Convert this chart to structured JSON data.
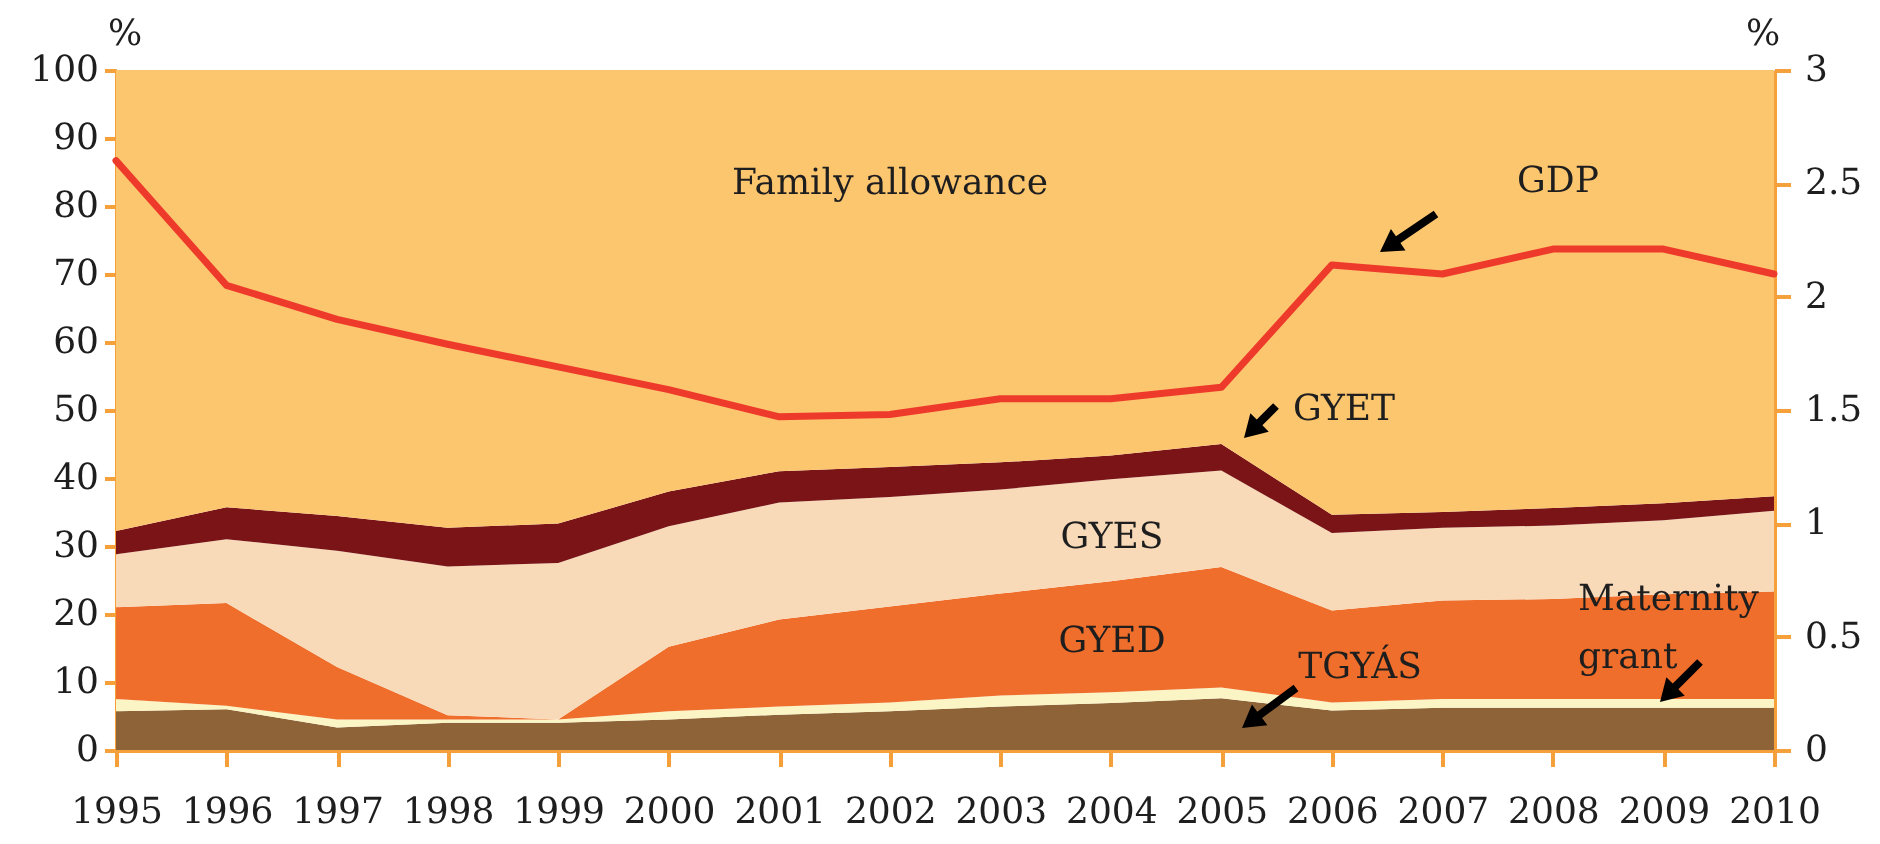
{
  "chart_data": {
    "type": "area",
    "stacked": true,
    "x": [
      1995,
      1996,
      1997,
      1998,
      1999,
      2000,
      2001,
      2002,
      2003,
      2004,
      2005,
      2006,
      2007,
      2008,
      2009,
      2010
    ],
    "xlim": [
      1995,
      2010
    ],
    "xticks": [
      1995,
      1996,
      1997,
      1998,
      1999,
      2000,
      2001,
      2002,
      2003,
      2004,
      2005,
      2006,
      2007,
      2008,
      2009,
      2010
    ],
    "ylim": [
      0,
      100
    ],
    "yticks": [
      0,
      10,
      20,
      30,
      40,
      50,
      60,
      70,
      80,
      90,
      100
    ],
    "ylabel": "%",
    "y2lim": [
      0,
      3
    ],
    "y2ticks": [
      0,
      0.5,
      1,
      1.5,
      2,
      2.5,
      3
    ],
    "y2label": "%",
    "series": [
      {
        "name": "TGYÁS",
        "color": "#8e6338",
        "values": [
          5.7,
          6.0,
          3.3,
          4.0,
          4.0,
          4.5,
          5.2,
          5.7,
          6.4,
          6.9,
          7.6,
          5.8,
          6.2,
          6.2,
          6.2,
          6.2
        ]
      },
      {
        "name": "Maternity grant",
        "color": "#fbf4c4",
        "values": [
          1.8,
          0.5,
          1.2,
          0.5,
          0.5,
          1.2,
          1.2,
          1.3,
          1.6,
          1.6,
          1.6,
          1.2,
          1.3,
          1.3,
          1.3,
          1.3
        ]
      },
      {
        "name": "GYED",
        "color": "#f06e2b",
        "values": [
          13.5,
          15.1,
          7.7,
          0.6,
          0,
          9.5,
          12.8,
          14.1,
          15.0,
          16.3,
          17.7,
          13.5,
          14.5,
          14.7,
          15.4,
          15.8
        ]
      },
      {
        "name": "GYES",
        "color": "#f8dab8",
        "values": [
          7.8,
          9.4,
          17.1,
          21.9,
          23.0,
          17.7,
          17.2,
          16.1,
          15.3,
          15.0,
          14.2,
          11.4,
          10.7,
          10.8,
          10.9,
          11.9
        ]
      },
      {
        "name": "GYET",
        "color": "#7a1417",
        "values": [
          3.4,
          4.7,
          5.1,
          5.7,
          5.8,
          5.1,
          4.6,
          4.4,
          4.0,
          3.5,
          3.9,
          2.7,
          2.3,
          2.6,
          2.5,
          2.1
        ]
      },
      {
        "name": "Family allowance",
        "color": "#fcc66f",
        "values": [
          67.8,
          64.3,
          65.6,
          67.3,
          66.7,
          62.0,
          59.0,
          58.4,
          57.7,
          56.7,
          55.0,
          65.4,
          65.0,
          64.4,
          63.7,
          62.7
        ]
      },
      {
        "name": "GDP",
        "type": "line",
        "axis": "y2",
        "color": "#ee3a2b",
        "values": [
          2.6,
          2.05,
          1.9,
          1.79,
          1.69,
          1.59,
          1.47,
          1.48,
          1.55,
          1.55,
          1.6,
          2.14,
          2.1,
          2.21,
          2.21,
          2.1
        ]
      }
    ]
  }
}
